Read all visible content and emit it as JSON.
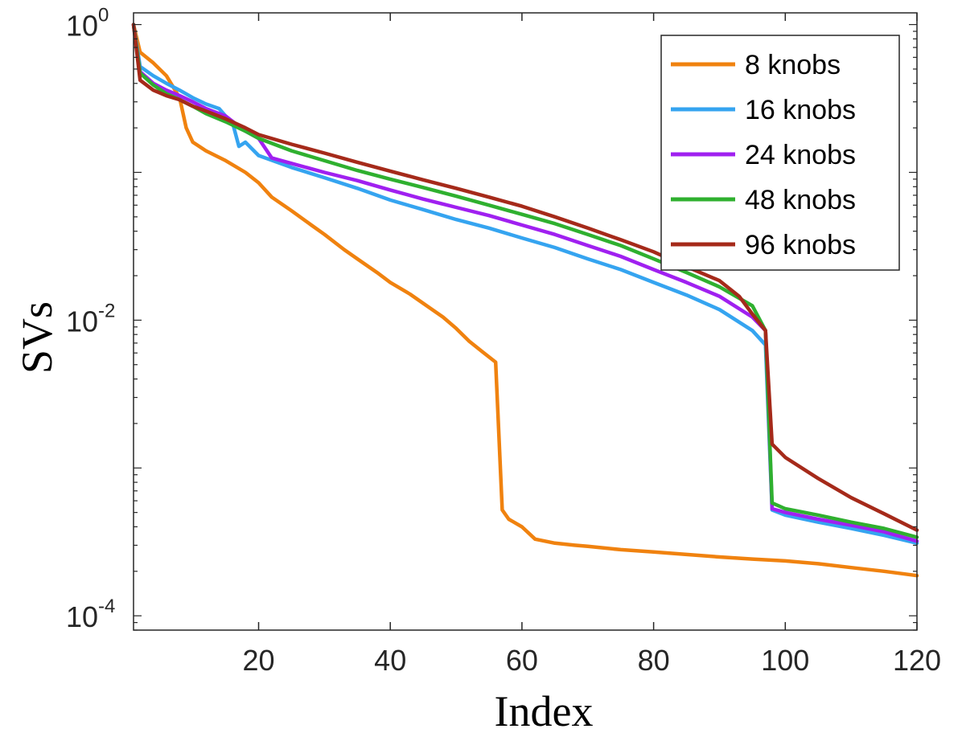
{
  "chart_data": {
    "type": "line",
    "title": "",
    "xlabel": "Index",
    "ylabel": "SVs",
    "yscale": "log",
    "xlim": [
      1,
      120
    ],
    "ylim": [
      8e-05,
      1.2
    ],
    "legend_position": "top-right",
    "xticks": [
      20,
      40,
      60,
      80,
      100,
      120
    ],
    "xtick_labels": [
      "20",
      "40",
      "60",
      "80",
      "100",
      "120"
    ],
    "yticks": [
      {
        "value": 1,
        "base": "10",
        "exp": "0"
      },
      {
        "value": 0.01,
        "base": "10",
        "exp": "-2"
      },
      {
        "value": 0.0001,
        "base": "10",
        "exp": "-4"
      }
    ],
    "series": [
      {
        "name": "8 knobs",
        "color": "#F0820F",
        "x": [
          1,
          2,
          4,
          6,
          8,
          9,
          10,
          12,
          15,
          18,
          20,
          22,
          25,
          28,
          30,
          33,
          35,
          38,
          40,
          43,
          45,
          48,
          50,
          52,
          54,
          56,
          57,
          58,
          60,
          62,
          65,
          68,
          70,
          75,
          80,
          85,
          90,
          95,
          100,
          105,
          110,
          115,
          120
        ],
        "values": [
          1.0,
          0.65,
          0.55,
          0.45,
          0.32,
          0.2,
          0.16,
          0.14,
          0.12,
          0.1,
          0.085,
          0.068,
          0.055,
          0.044,
          0.038,
          0.03,
          0.026,
          0.021,
          0.018,
          0.015,
          0.013,
          0.0105,
          0.0088,
          0.0072,
          0.0061,
          0.0052,
          0.00052,
          0.00045,
          0.0004,
          0.00033,
          0.00031,
          0.0003,
          0.000295,
          0.00028,
          0.00027,
          0.00026,
          0.00025,
          0.000242,
          0.000235,
          0.000225,
          0.000212,
          0.0002,
          0.000187
        ]
      },
      {
        "name": "16 knobs",
        "color": "#35A4F0",
        "x": [
          1,
          2,
          4,
          6,
          8,
          10,
          12,
          14,
          15,
          16,
          17,
          18,
          20,
          25,
          30,
          35,
          40,
          45,
          50,
          55,
          60,
          65,
          70,
          75,
          80,
          85,
          90,
          95,
          97,
          98,
          100,
          105,
          110,
          115,
          120
        ],
        "values": [
          1.0,
          0.52,
          0.45,
          0.4,
          0.36,
          0.32,
          0.29,
          0.27,
          0.24,
          0.22,
          0.15,
          0.16,
          0.13,
          0.108,
          0.092,
          0.078,
          0.065,
          0.056,
          0.048,
          0.042,
          0.036,
          0.031,
          0.026,
          0.022,
          0.018,
          0.0148,
          0.0118,
          0.0085,
          0.0068,
          0.00052,
          0.00048,
          0.00043,
          0.00039,
          0.00035,
          0.00031
        ]
      },
      {
        "name": "24 knobs",
        "color": "#A020F0",
        "x": [
          1,
          2,
          4,
          6,
          8,
          10,
          12,
          15,
          18,
          20,
          22,
          25,
          30,
          35,
          40,
          45,
          50,
          55,
          60,
          65,
          70,
          75,
          80,
          85,
          90,
          95,
          97,
          98,
          100,
          105,
          110,
          115,
          120
        ],
        "values": [
          1.0,
          0.48,
          0.4,
          0.36,
          0.33,
          0.3,
          0.27,
          0.24,
          0.19,
          0.17,
          0.125,
          0.115,
          0.1,
          0.088,
          0.076,
          0.066,
          0.058,
          0.051,
          0.044,
          0.038,
          0.032,
          0.027,
          0.022,
          0.018,
          0.0145,
          0.0105,
          0.0085,
          0.00053,
          0.0005,
          0.00045,
          0.00041,
          0.00037,
          0.00032
        ]
      },
      {
        "name": "48 knobs",
        "color": "#2FB02F",
        "x": [
          1,
          2,
          4,
          6,
          8,
          10,
          12,
          15,
          18,
          20,
          25,
          30,
          35,
          40,
          45,
          50,
          55,
          60,
          65,
          70,
          75,
          80,
          85,
          90,
          95,
          97,
          98,
          100,
          105,
          110,
          115,
          120
        ],
        "values": [
          1.0,
          0.47,
          0.39,
          0.34,
          0.31,
          0.28,
          0.25,
          0.22,
          0.19,
          0.17,
          0.14,
          0.12,
          0.103,
          0.09,
          0.079,
          0.069,
          0.06,
          0.052,
          0.045,
          0.038,
          0.032,
          0.026,
          0.021,
          0.0168,
          0.0125,
          0.0085,
          0.00058,
          0.00053,
          0.00048,
          0.00043,
          0.00039,
          0.00034
        ]
      },
      {
        "name": "96 knobs",
        "color": "#A52A1A",
        "x": [
          1,
          2,
          4,
          6,
          8,
          10,
          12,
          15,
          18,
          20,
          25,
          30,
          35,
          40,
          45,
          50,
          55,
          60,
          65,
          70,
          75,
          80,
          85,
          90,
          93,
          95,
          97,
          98,
          100,
          105,
          110,
          115,
          120
        ],
        "values": [
          1.0,
          0.42,
          0.36,
          0.33,
          0.31,
          0.28,
          0.26,
          0.23,
          0.2,
          0.18,
          0.155,
          0.135,
          0.117,
          0.102,
          0.089,
          0.078,
          0.068,
          0.059,
          0.05,
          0.042,
          0.035,
          0.029,
          0.023,
          0.0185,
          0.0145,
          0.011,
          0.0085,
          0.00145,
          0.00118,
          0.00085,
          0.00063,
          0.00049,
          0.00038
        ]
      }
    ]
  }
}
